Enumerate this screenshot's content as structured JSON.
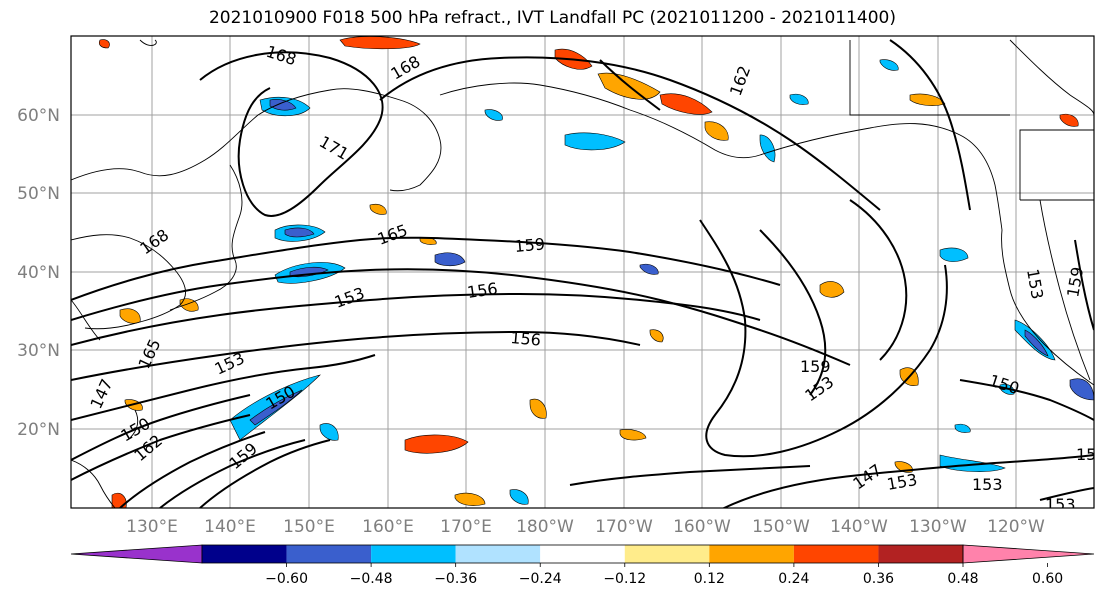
{
  "title": "2021010900 F018 500 hPa refract., IVT Landfall PC (2021011200 - 2021011400)",
  "lat_labels": [
    "60°N",
    "50°N",
    "40°N",
    "30°N",
    "20°N"
  ],
  "lon_labels": [
    "130°E",
    "140°E",
    "150°E",
    "160°E",
    "170°E",
    "180°W",
    "170°W",
    "160°W",
    "150°W",
    "140°W",
    "130°W",
    "120°W"
  ],
  "colorbar": {
    "colors": [
      "#9932cc",
      "#00008b",
      "#3a5fcd",
      "#00bfff",
      "#b0e2ff",
      "#ffffff",
      "#ffec8b",
      "#ffa500",
      "#ff4500",
      "#b22222",
      "#ff82ab"
    ],
    "ticks": [
      "−0.60",
      "−0.48",
      "−0.36",
      "−0.24",
      "−0.12",
      "0.12",
      "0.24",
      "0.36",
      "0.48",
      "0.60"
    ]
  },
  "contour_labels": [
    "168",
    "168",
    "171",
    "168",
    "165",
    "159",
    "156",
    "153",
    "156",
    "153",
    "159",
    "153",
    "150",
    "153",
    "147",
    "153",
    "153",
    "162",
    "159",
    "150",
    "147",
    "165",
    "153",
    "159",
    "153",
    "162",
    "150"
  ]
}
